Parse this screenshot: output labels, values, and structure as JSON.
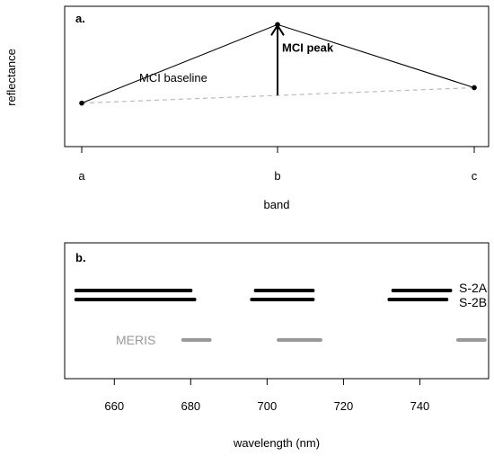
{
  "colors": {
    "line": "#000000",
    "baseline": "#bbbbbb",
    "sentinel": "#000000",
    "meris": "#999999"
  },
  "chart_data": [
    {
      "type": "line",
      "panel_label": "a.",
      "ylabel": "reflectance",
      "xlabel": "band",
      "categories": [
        "a",
        "b",
        "c"
      ],
      "values": [
        0.31,
        0.87,
        0.42
      ],
      "ylim": [
        0,
        1
      ],
      "baseline_label": "MCI baseline",
      "peak_label": "MCI peak",
      "grid": false
    },
    {
      "type": "bar",
      "panel_label": "b.",
      "xlabel": "wavelength (nm)",
      "xlim": [
        647,
        758
      ],
      "xticks": [
        660,
        680,
        700,
        720,
        740
      ],
      "series": [
        {
          "name": "S-2A",
          "bands": [
            [
              650,
              680
            ],
            [
              697,
              712
            ],
            [
              733,
              748
            ]
          ]
        },
        {
          "name": "S-2B",
          "bands": [
            [
              650,
              681
            ],
            [
              696,
              712
            ],
            [
              732,
              747
            ]
          ]
        },
        {
          "name": "MERIS",
          "bands": [
            [
              678,
              685
            ],
            [
              703,
              714
            ],
            [
              750,
              757
            ]
          ]
        }
      ],
      "grid": false
    }
  ]
}
